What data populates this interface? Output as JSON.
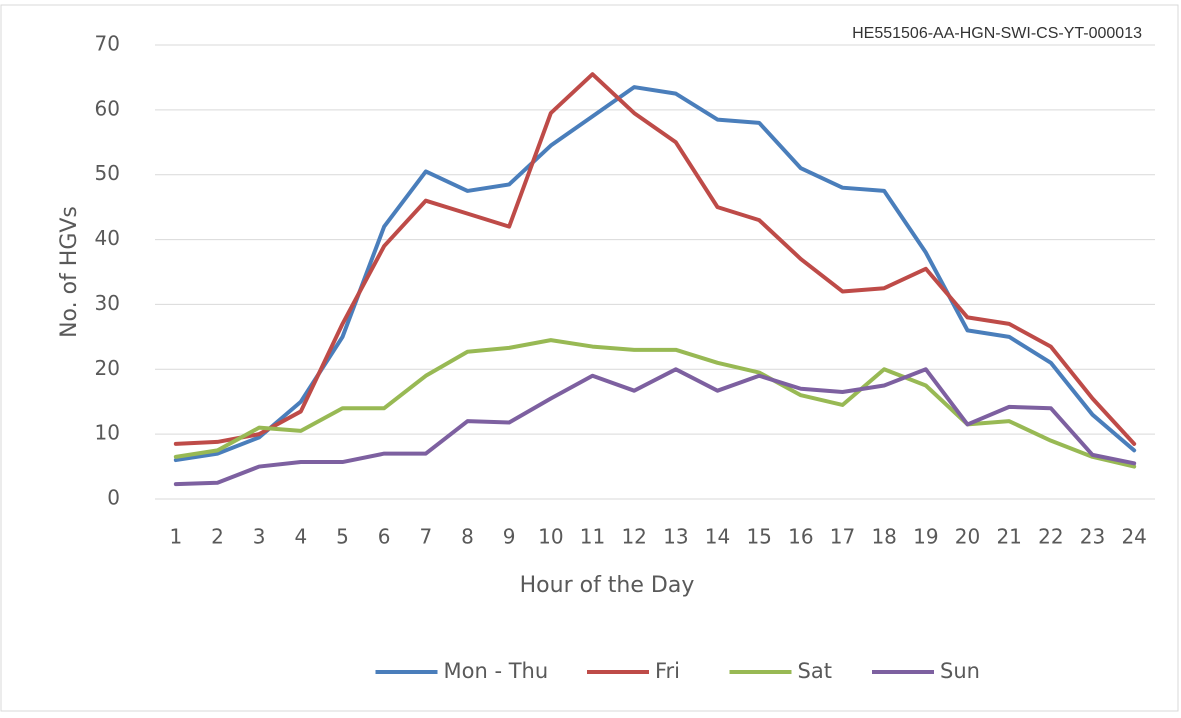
{
  "chart_data": {
    "type": "line",
    "annotation": "HE551506-AA-HGN-SWI-CS-YT-000013",
    "x_label": "Hour of the Day",
    "y_label": "No. of HGVs",
    "categories": [
      "1",
      "2",
      "3",
      "4",
      "5",
      "6",
      "7",
      "8",
      "9",
      "10",
      "11",
      "12",
      "13",
      "14",
      "15",
      "16",
      "17",
      "18",
      "19",
      "20",
      "21",
      "22",
      "23",
      "24"
    ],
    "series": [
      {
        "name": "Mon - Thu",
        "color": "#4a7ebb",
        "values": [
          6,
          7,
          9.5,
          15,
          25,
          42,
          50.5,
          47.5,
          48.5,
          54.5,
          59,
          63.5,
          62.5,
          58.5,
          58,
          51,
          48,
          47.5,
          38,
          26,
          25,
          21,
          13,
          7.5
        ]
      },
      {
        "name": "Fri",
        "color": "#be4b48",
        "values": [
          8.5,
          8.8,
          10,
          13.5,
          27,
          39,
          46,
          44,
          42,
          59.5,
          65.5,
          59.5,
          55,
          45,
          43,
          37,
          32,
          32.5,
          35.5,
          28,
          27,
          23.5,
          15.5,
          8.5
        ]
      },
      {
        "name": "Sat",
        "color": "#98b954",
        "values": [
          6.5,
          7.5,
          11,
          10.5,
          14,
          14,
          19,
          22.7,
          23.3,
          24.5,
          23.5,
          23,
          23,
          21,
          19.5,
          16,
          14.5,
          20,
          17.5,
          11.5,
          12,
          9,
          6.5,
          5
        ]
      },
      {
        "name": "Sun",
        "color": "#7d60a0",
        "values": [
          2.3,
          2.5,
          5,
          5.7,
          5.7,
          7,
          7,
          12,
          11.8,
          15.5,
          19,
          16.7,
          20,
          16.7,
          19,
          17,
          16.5,
          17.5,
          20,
          11.5,
          14.2,
          14,
          6.8,
          5.5
        ]
      }
    ],
    "ylim": [
      0,
      70
    ],
    "yticks": [
      0,
      10,
      20,
      30,
      40,
      50,
      60,
      70
    ],
    "grid": true,
    "legend": "bottom"
  }
}
